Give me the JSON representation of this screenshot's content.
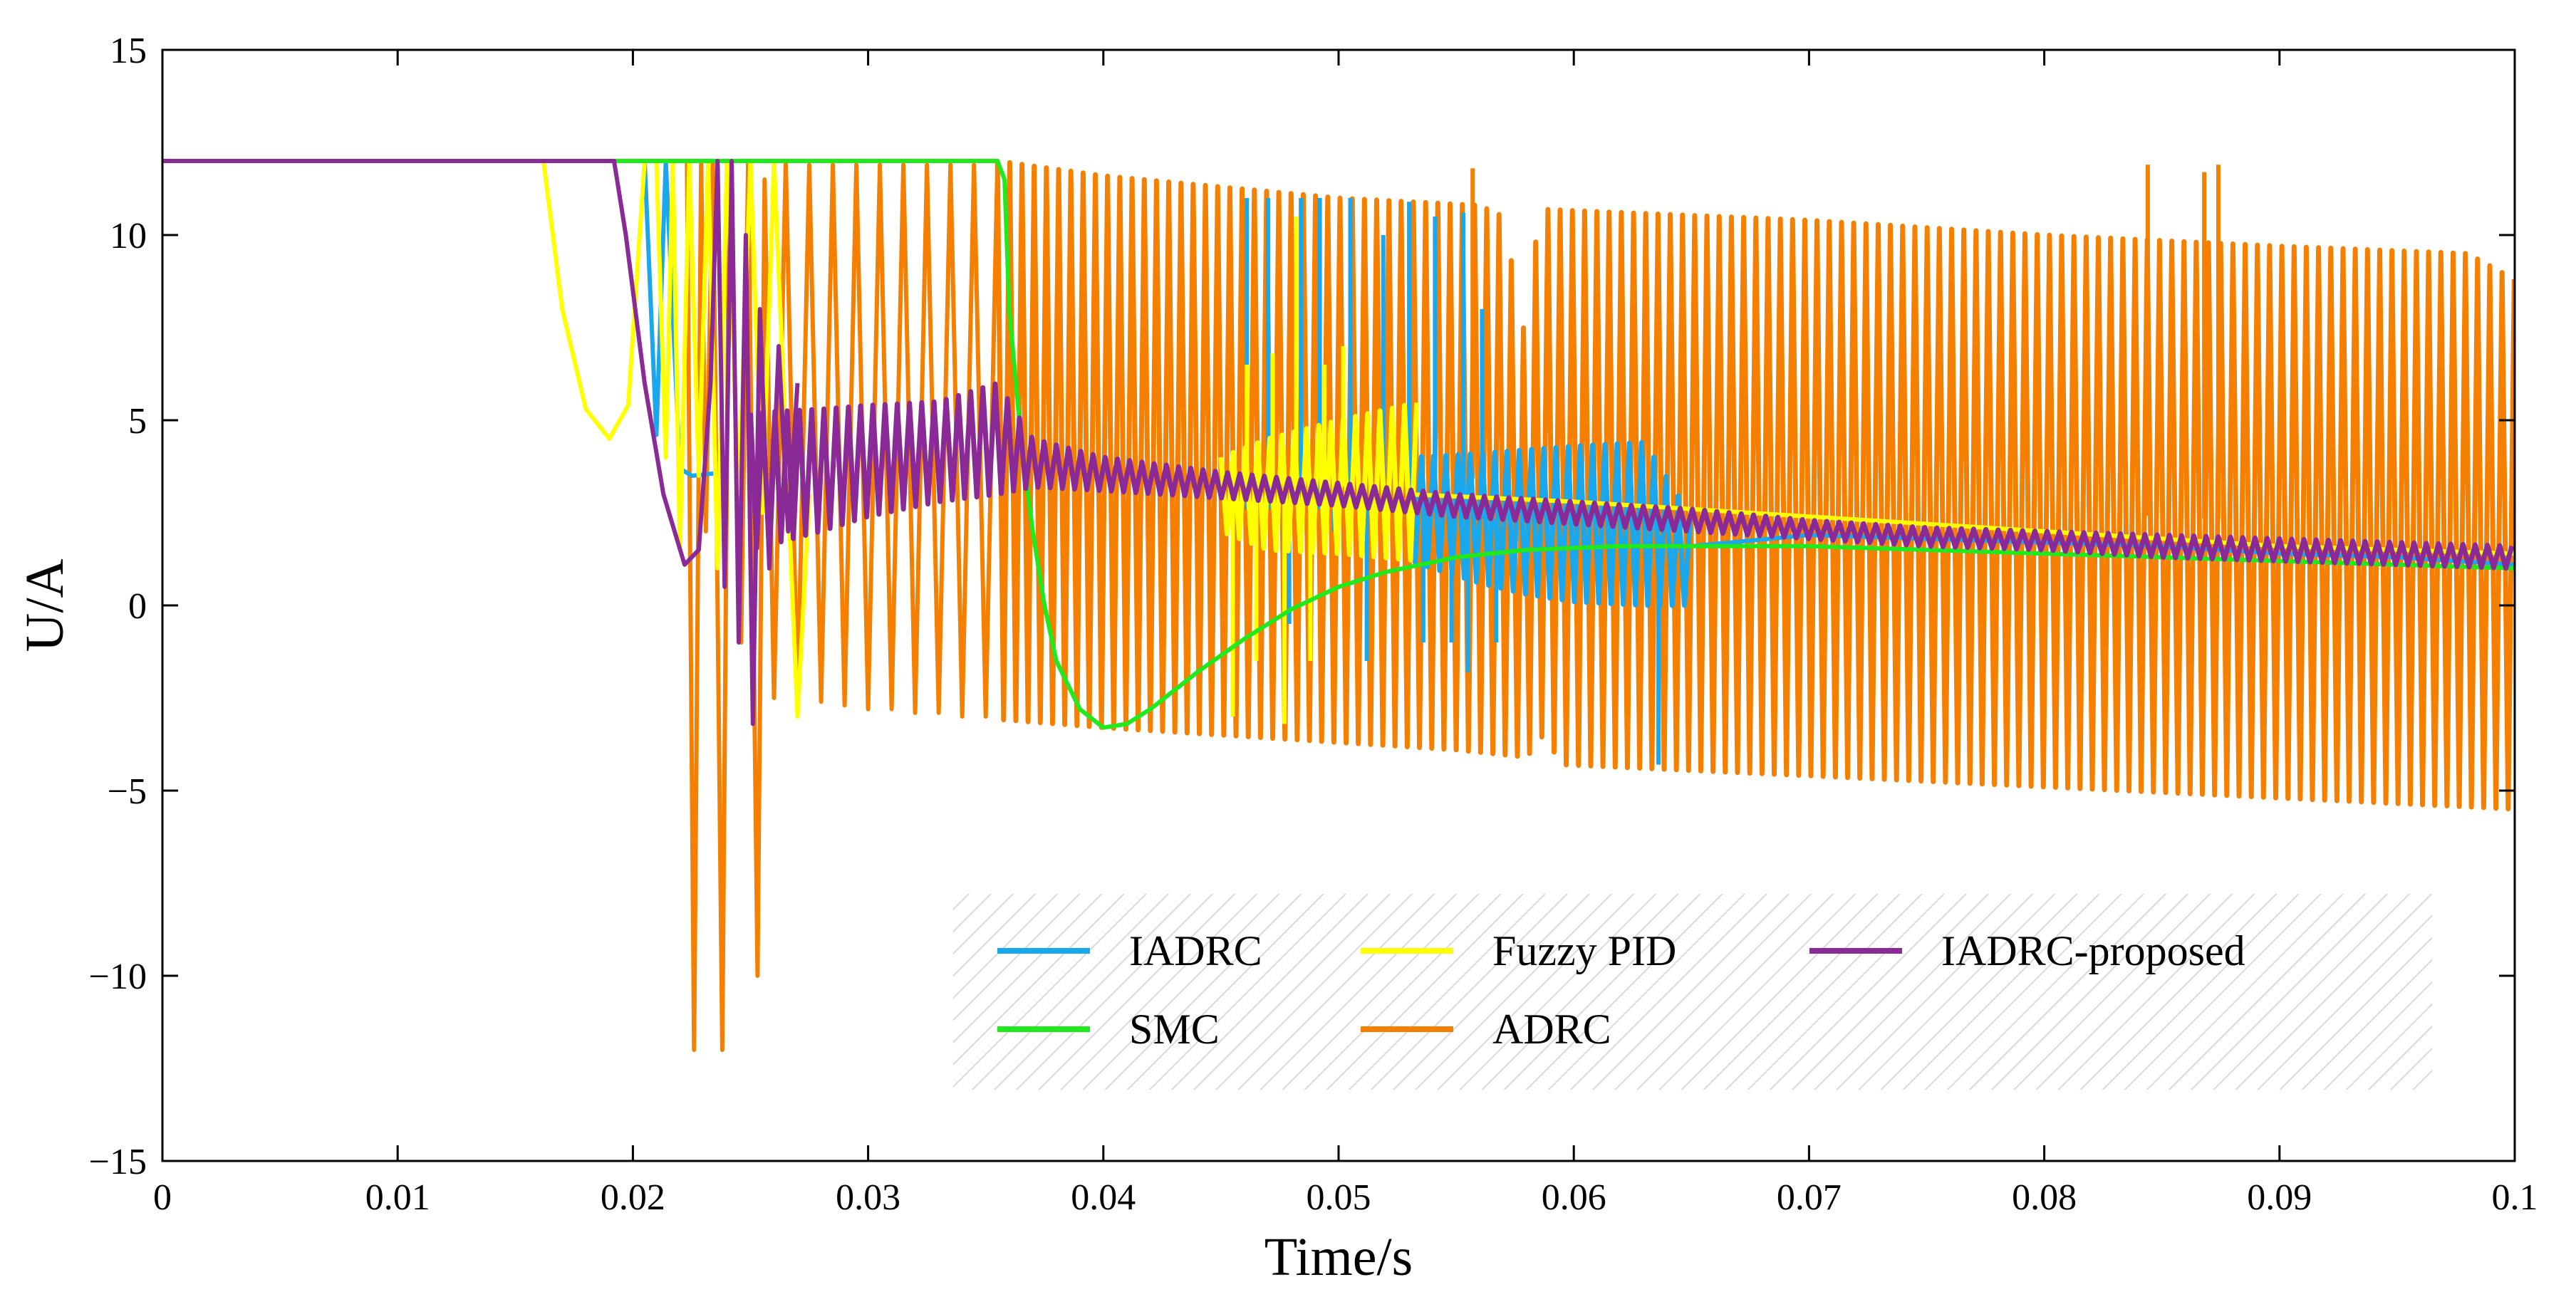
{
  "chart_data": {
    "type": "line",
    "title": "",
    "xlabel": "Time/s",
    "ylabel": "U/A",
    "xlim": [
      0,
      0.1
    ],
    "ylim": [
      -15,
      15
    ],
    "x_ticks": [
      0,
      0.01,
      0.02,
      0.03,
      0.04,
      0.05,
      0.06,
      0.07,
      0.08,
      0.09,
      0.1
    ],
    "x_tick_labels": [
      "0",
      "0.01",
      "0.02",
      "0.03",
      "0.04",
      "0.05",
      "0.06",
      "0.07",
      "0.08",
      "0.09",
      "0.1"
    ],
    "y_ticks": [
      -15,
      -10,
      -5,
      0,
      5,
      10,
      15
    ],
    "y_tick_labels": [
      "−15",
      "−10",
      "−5",
      "0",
      "5",
      "10",
      "15"
    ],
    "grid": false,
    "legend_position": "bottom-right",
    "series": [
      {
        "name": "ADRC",
        "legend_label": "ADRC",
        "color": "#f57f00",
        "kind": "envelope",
        "upper": [
          [
            0.0355,
            12.0
          ],
          [
            0.04,
            11.6
          ],
          [
            0.05,
            11.0
          ],
          [
            0.056,
            10.8
          ],
          [
            0.057,
            10.5
          ],
          [
            0.058,
            7.0
          ],
          [
            0.0585,
            10.7
          ],
          [
            0.07,
            10.4
          ],
          [
            0.08,
            10.0
          ],
          [
            0.09,
            9.7
          ],
          [
            0.098,
            9.5
          ],
          [
            0.1,
            8.8
          ]
        ],
        "lower": [
          [
            0.025,
            -2.6
          ],
          [
            0.03,
            -2.8
          ],
          [
            0.04,
            -3.3
          ],
          [
            0.05,
            -3.7
          ],
          [
            0.055,
            -3.9
          ],
          [
            0.058,
            -4.1
          ],
          [
            0.0587,
            -3.5
          ],
          [
            0.0595,
            -4.3
          ],
          [
            0.07,
            -4.6
          ],
          [
            0.08,
            -4.9
          ],
          [
            0.09,
            -5.2
          ],
          [
            0.1,
            -5.5
          ]
        ],
        "segments": [
          [
            [
              0.0,
              12.0
            ],
            [
              0.0223,
              12.0
            ],
            [
              0.0226,
              -12.0
            ],
            [
              0.0229,
              12.0
            ],
            [
              0.0231,
              2.0
            ],
            [
              0.0234,
              12.0
            ],
            [
              0.0238,
              -12.0
            ],
            [
              0.0241,
              12.0
            ],
            [
              0.0246,
              -1.0
            ],
            [
              0.0249,
              12.0
            ],
            [
              0.0253,
              -10.0
            ],
            [
              0.0256,
              11.5
            ],
            [
              0.026,
              -2.5
            ],
            [
              0.0265,
              12.0
            ],
            [
              0.027,
              -2.6
            ],
            [
              0.0275,
              11.9
            ],
            [
              0.028,
              -2.6
            ],
            [
              0.0285,
              11.9
            ],
            [
              0.029,
              -2.7
            ],
            [
              0.0295,
              11.9
            ],
            [
              0.03,
              -2.8
            ],
            [
              0.0305,
              11.9
            ],
            [
              0.031,
              -2.8
            ],
            [
              0.0315,
              11.9
            ],
            [
              0.032,
              -2.9
            ],
            [
              0.0325,
              11.9
            ],
            [
              0.033,
              -2.9
            ],
            [
              0.0335,
              11.9
            ],
            [
              0.034,
              -3.0
            ],
            [
              0.0345,
              11.9
            ],
            [
              0.035,
              -3.0
            ],
            [
              0.0355,
              12.0
            ]
          ]
        ],
        "spikes": [
          [
            0.0844,
            11.9
          ],
          [
            0.0868,
            11.7
          ],
          [
            0.0874,
            11.9
          ],
          [
            0.0557,
            11.8
          ]
        ]
      },
      {
        "name": "IADRC",
        "legend_label": "IADRC",
        "color": "#1aa7ec",
        "kind": "envelope",
        "upper": [
          [
            0.053,
            4.0
          ],
          [
            0.056,
            4.1
          ],
          [
            0.058,
            4.2
          ],
          [
            0.06,
            4.3
          ],
          [
            0.063,
            4.4
          ],
          [
            0.065,
            2.4
          ]
        ],
        "lower": [
          [
            0.053,
            1.2
          ],
          [
            0.056,
            0.6
          ],
          [
            0.058,
            0.3
          ],
          [
            0.06,
            0.1
          ],
          [
            0.063,
            0.0
          ],
          [
            0.065,
            0.0
          ]
        ],
        "segments": [
          [
            [
              0.0,
              12.0
            ],
            [
              0.0205,
              12.0
            ],
            [
              0.021,
              4.6
            ],
            [
              0.0214,
              12.0
            ],
            [
              0.022,
              3.7
            ],
            [
              0.0225,
              3.5
            ],
            [
              0.024,
              3.6
            ]
          ],
          [
            [
              0.065,
              1.6
            ],
            [
              0.07,
              1.9
            ],
            [
              0.075,
              1.8
            ],
            [
              0.08,
              1.7
            ],
            [
              0.085,
              1.6
            ],
            [
              0.09,
              1.4
            ],
            [
              0.095,
              1.3
            ],
            [
              0.1,
              1.1
            ]
          ]
        ],
        "spikes": [
          [
            0.0461,
            11.0
          ],
          [
            0.047,
            11.0
          ],
          [
            0.0479,
            -0.5
          ],
          [
            0.0484,
            11.0
          ],
          [
            0.0492,
            11.0
          ],
          [
            0.0498,
            2.0
          ],
          [
            0.0505,
            11.0
          ],
          [
            0.0512,
            -1.5
          ],
          [
            0.0519,
            10.0
          ],
          [
            0.053,
            10.9
          ],
          [
            0.0536,
            -1.0
          ],
          [
            0.0541,
            10.5
          ],
          [
            0.0548,
            -1.0
          ],
          [
            0.0553,
            10.6
          ],
          [
            0.0555,
            -1.8
          ],
          [
            0.0561,
            8.0
          ],
          [
            0.0567,
            -1.0
          ],
          [
            0.0636,
            -4.3
          ]
        ]
      },
      {
        "name": "Fuzzy PID",
        "legend_label": "Fuzzy PID",
        "color": "#ffff00",
        "kind": "envelope",
        "upper": [
          [
            0.045,
            4.0
          ],
          [
            0.047,
            4.5
          ],
          [
            0.05,
            5.0
          ],
          [
            0.0535,
            5.5
          ]
        ],
        "lower": [
          [
            0.045,
            2.0
          ],
          [
            0.047,
            1.5
          ],
          [
            0.05,
            1.4
          ],
          [
            0.0535,
            1.2
          ]
        ],
        "segments": [
          [
            [
              0.0162,
              12.0
            ],
            [
              0.017,
              8.0
            ],
            [
              0.018,
              5.3
            ],
            [
              0.019,
              4.5
            ],
            [
              0.0198,
              5.4
            ],
            [
              0.0205,
              12.0
            ],
            [
              0.021,
              12.0
            ],
            [
              0.0214,
              4.0
            ],
            [
              0.0217,
              12.0
            ],
            [
              0.022,
              1.5
            ],
            [
              0.0224,
              12.0
            ],
            [
              0.0228,
              3.5
            ],
            [
              0.0232,
              12.0
            ],
            [
              0.0236,
              1.0
            ],
            [
              0.024,
              12.0
            ],
            [
              0.0245,
              3.0
            ],
            [
              0.025,
              12.0
            ],
            [
              0.0255,
              2.5
            ],
            [
              0.026,
              12.0
            ],
            [
              0.027,
              -3.0
            ],
            [
              0.0275,
              3.0
            ]
          ],
          [
            [
              0.053,
              3.0
            ],
            [
              0.06,
              2.8
            ],
            [
              0.065,
              2.6
            ],
            [
              0.07,
              2.4
            ],
            [
              0.075,
              2.2
            ],
            [
              0.08,
              2.0
            ],
            [
              0.085,
              1.8
            ],
            [
              0.09,
              1.6
            ],
            [
              0.095,
              1.5
            ],
            [
              0.1,
              1.4
            ]
          ]
        ],
        "spikes": [
          [
            0.0455,
            -3.0
          ],
          [
            0.0461,
            6.5
          ],
          [
            0.0465,
            -1.5
          ],
          [
            0.0472,
            6.8
          ],
          [
            0.0477,
            -3.2
          ],
          [
            0.0482,
            10.5
          ],
          [
            0.0488,
            -1.5
          ],
          [
            0.0494,
            6.5
          ],
          [
            0.0502,
            7.0
          ]
        ]
      },
      {
        "name": "SMC",
        "legend_label": "SMC",
        "color": "#22e81e",
        "kind": "line",
        "segments": [
          [
            [
              0.0,
              12.0
            ],
            [
              0.0355,
              12.0
            ],
            [
              0.0358,
              11.5
            ],
            [
              0.036,
              8.0
            ],
            [
              0.0365,
              4.5
            ],
            [
              0.037,
              2.0
            ],
            [
              0.0375,
              0.0
            ],
            [
              0.038,
              -1.5
            ],
            [
              0.039,
              -2.8
            ],
            [
              0.04,
              -3.3
            ],
            [
              0.041,
              -3.2
            ],
            [
              0.042,
              -2.8
            ],
            [
              0.044,
              -1.8
            ],
            [
              0.046,
              -0.9
            ],
            [
              0.048,
              -0.1
            ],
            [
              0.05,
              0.5
            ],
            [
              0.052,
              0.9
            ],
            [
              0.055,
              1.3
            ],
            [
              0.058,
              1.5
            ],
            [
              0.062,
              1.6
            ],
            [
              0.065,
              1.6
            ],
            [
              0.07,
              1.6
            ],
            [
              0.075,
              1.5
            ],
            [
              0.08,
              1.4
            ],
            [
              0.085,
              1.3
            ],
            [
              0.09,
              1.2
            ],
            [
              0.095,
              1.1
            ],
            [
              0.1,
              1.0
            ]
          ]
        ],
        "spikes": []
      },
      {
        "name": "IADRC-proposed",
        "legend_label": "IADRC-proposed",
        "color": "#8a2a96",
        "kind": "envelope",
        "upper": [
          [
            0.025,
            5.2
          ],
          [
            0.028,
            5.3
          ],
          [
            0.03,
            5.4
          ],
          [
            0.033,
            5.5
          ],
          [
            0.0355,
            6.0
          ],
          [
            0.037,
            4.5
          ],
          [
            0.04,
            4.0
          ],
          [
            0.045,
            3.6
          ],
          [
            0.05,
            3.3
          ],
          [
            0.055,
            3.0
          ],
          [
            0.06,
            2.8
          ],
          [
            0.065,
            2.6
          ],
          [
            0.07,
            2.3
          ],
          [
            0.075,
            2.1
          ],
          [
            0.08,
            2.0
          ],
          [
            0.085,
            1.9
          ],
          [
            0.09,
            1.8
          ],
          [
            0.095,
            1.7
          ],
          [
            0.1,
            1.6
          ]
        ],
        "lower": [
          [
            0.025,
            1.5
          ],
          [
            0.028,
            2.0
          ],
          [
            0.03,
            2.4
          ],
          [
            0.033,
            2.8
          ],
          [
            0.0355,
            3.0
          ],
          [
            0.037,
            3.2
          ],
          [
            0.04,
            3.1
          ],
          [
            0.045,
            2.9
          ],
          [
            0.05,
            2.7
          ],
          [
            0.055,
            2.4
          ],
          [
            0.06,
            2.2
          ],
          [
            0.065,
            2.0
          ],
          [
            0.07,
            1.8
          ],
          [
            0.075,
            1.6
          ],
          [
            0.08,
            1.5
          ],
          [
            0.085,
            1.3
          ],
          [
            0.09,
            1.2
          ],
          [
            0.095,
            1.1
          ],
          [
            0.1,
            1.0
          ]
        ],
        "segments": [
          [
            [
              0.0,
              12.0
            ],
            [
              0.0192,
              12.0
            ],
            [
              0.0197,
              10.0
            ],
            [
              0.0205,
              6.0
            ],
            [
              0.0213,
              3.0
            ],
            [
              0.0222,
              1.1
            ],
            [
              0.0228,
              1.5
            ],
            [
              0.0233,
              6.0
            ],
            [
              0.0236,
              12.0
            ],
            [
              0.0239,
              0.5
            ],
            [
              0.0242,
              12.0
            ],
            [
              0.0245,
              -1.0
            ],
            [
              0.0248,
              10.0
            ],
            [
              0.0251,
              -3.2
            ],
            [
              0.0254,
              8.0
            ],
            [
              0.0258,
              1.0
            ],
            [
              0.0262,
              7.0
            ],
            [
              0.0266,
              2.0
            ],
            [
              0.027,
              6.0
            ]
          ]
        ],
        "spikes": []
      }
    ],
    "legend": {
      "rows": [
        [
          "IADRC",
          "Fuzzy PID",
          "IADRC-proposed"
        ],
        [
          "SMC",
          "ADRC"
        ]
      ]
    }
  }
}
